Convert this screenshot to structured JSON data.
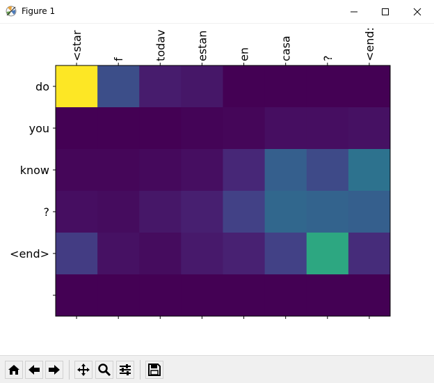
{
  "window": {
    "title": "Figure 1"
  },
  "icons": {
    "app": "matplotlib-icon",
    "minimize": "minimize-icon",
    "maximize": "maximize-icon",
    "close": "close-icon"
  },
  "toolbar": {
    "buttons": [
      {
        "name": "home-button",
        "icon": "home-icon"
      },
      {
        "name": "back-button",
        "icon": "arrow-left-icon"
      },
      {
        "name": "forward-button",
        "icon": "arrow-right-icon"
      },
      {
        "name": "pan-button",
        "icon": "move-icon"
      },
      {
        "name": "zoom-button",
        "icon": "magnifier-icon"
      },
      {
        "name": "configure-subplots-button",
        "icon": "sliders-icon"
      },
      {
        "name": "save-button",
        "icon": "floppy-disk-icon"
      }
    ]
  },
  "chart_data": {
    "type": "heatmap",
    "colormap": "viridis",
    "x_tick_labels": [
      "<star",
      "f",
      "todav",
      "estan",
      "en",
      "casa",
      "?",
      "<end:"
    ],
    "y_tick_labels": [
      "do",
      "you",
      "know",
      "?",
      "<end>",
      ""
    ],
    "values": [
      [
        1.0,
        0.3,
        0.1,
        0.08,
        0.0,
        0.0,
        0.0,
        0.0
      ],
      [
        0.0,
        0.0,
        0.0,
        0.01,
        0.02,
        0.05,
        0.05,
        0.06
      ],
      [
        0.02,
        0.02,
        0.03,
        0.05,
        0.14,
        0.38,
        0.28,
        0.47
      ],
      [
        0.05,
        0.04,
        0.08,
        0.11,
        0.24,
        0.42,
        0.4,
        0.38
      ],
      [
        0.22,
        0.06,
        0.04,
        0.09,
        0.12,
        0.24,
        0.7,
        0.16
      ],
      [
        0.0,
        0.0,
        0.0,
        0.0,
        0.0,
        0.0,
        0.0,
        0.0
      ]
    ],
    "grid": false
  }
}
